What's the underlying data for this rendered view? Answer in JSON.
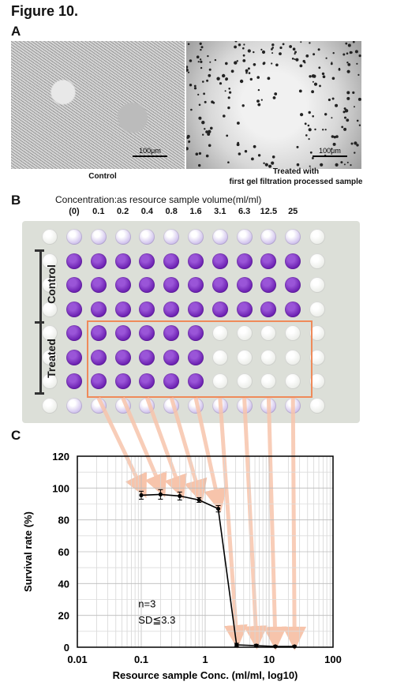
{
  "figure_title": "Figure 10.",
  "panel_a": {
    "label": "A",
    "control_scale": "100μm",
    "treated_scale": "100μm",
    "control_caption": "Control",
    "treated_caption_line1": "Treated with",
    "treated_caption_line2": "first gel filtration processed sample"
  },
  "panel_b": {
    "label": "B",
    "concentration_title": "Concentration:as resource sample volume(ml/ml)",
    "concentrations": [
      "(0)",
      "0.1",
      "0.2",
      "0.4",
      "0.8",
      "1.6",
      "3.1",
      "6.3",
      "12.5",
      "25"
    ],
    "control_label": "Control",
    "treated_label": "Treated",
    "colors": {
      "purple": "#6a1fb0",
      "pale": "#c9b9ea",
      "empty": "#e9ebe6",
      "highlight": "#ef8a5a",
      "arrow": "#f7c4ab"
    }
  },
  "panel_c": {
    "label": "C",
    "annotation_n": "n=3",
    "annotation_sd": "SD≦3.3"
  },
  "chart_data": {
    "type": "line",
    "x": [
      0.1,
      0.2,
      0.4,
      0.8,
      1.6,
      3.1,
      6.3,
      12.5,
      25
    ],
    "series": [
      {
        "values": [
          95.5,
          96,
          95,
          92.5,
          87,
          1.5,
          1,
          0.5,
          0.5
        ],
        "errors": [
          2.5,
          3,
          2.5,
          1.5,
          2,
          1,
          0.8,
          0.5,
          0.5
        ]
      }
    ],
    "title": "",
    "xlabel": "Resource sample Conc. (ml/ml, log10)",
    "ylabel": "Survival rate (%)",
    "xscale": "log",
    "xlim": [
      0.01,
      100
    ],
    "ylim": [
      0,
      120
    ],
    "xticks": [
      "0.01",
      "0.1",
      "1",
      "10",
      "100"
    ],
    "yticks": [
      "0",
      "20",
      "40",
      "60",
      "80",
      "100",
      "120"
    ],
    "grid": true
  }
}
